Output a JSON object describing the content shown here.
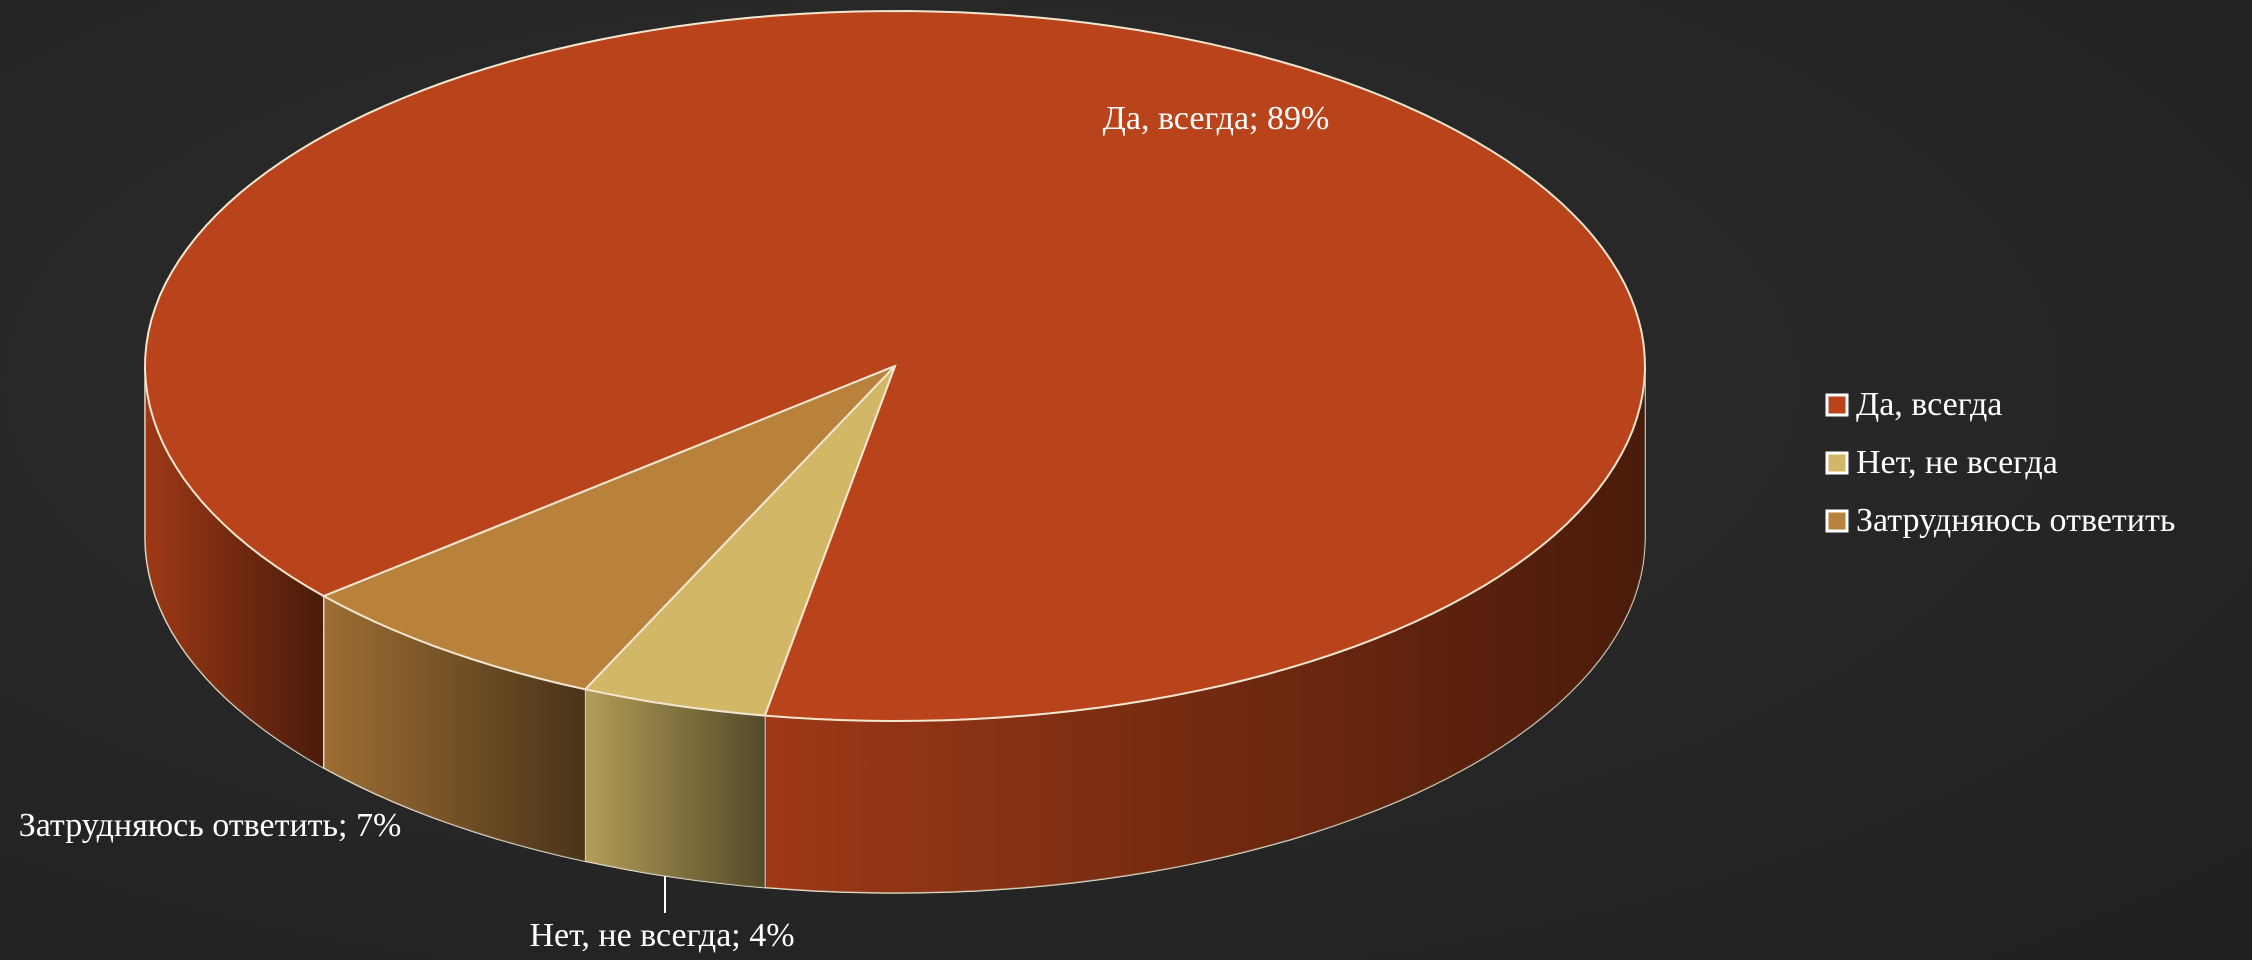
{
  "chart_data": {
    "type": "pie3d",
    "categories": [
      "Да, всегда",
      "Нет, не всегда",
      "Затрудняюсь ответить"
    ],
    "values": [
      89,
      4,
      7
    ],
    "value_labels": [
      "Да, всегда; 89%",
      "Нет, не всегда; 4%",
      "Затрудняюсь ответить; 7%"
    ],
    "colors": [
      "#b9431a",
      "#d2b866",
      "#b8813c"
    ],
    "legend": "right"
  }
}
